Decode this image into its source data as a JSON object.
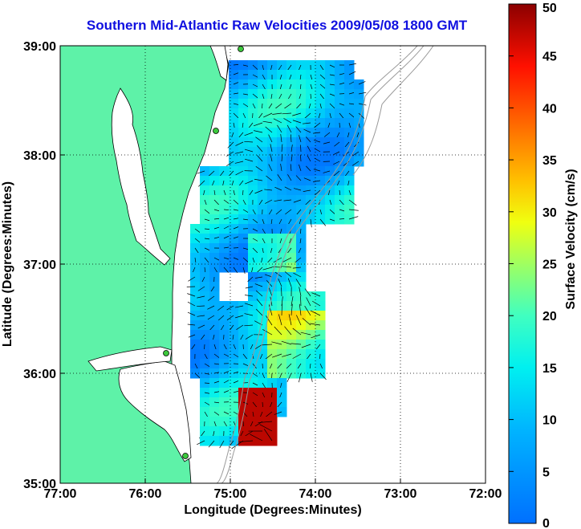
{
  "title": "Southern Mid-Atlantic Raw Velocities 2009/05/08 1800 GMT",
  "xlabel": "Longitude (Degrees:Minutes)",
  "ylabel": "Latitude (Degrees:Minutes)",
  "x_ticks": [
    "77:00",
    "76:00",
    "75:00",
    "74:00",
    "73:00",
    "72:00"
  ],
  "y_ticks": [
    "39:00",
    "38:00",
    "37:00",
    "36:00",
    "35:00"
  ],
  "colorbar": {
    "label": "Surface Velocity (cm/s)",
    "ticks": [
      "0",
      "5",
      "10",
      "15",
      "20",
      "25",
      "30",
      "35",
      "40",
      "45",
      "50"
    ],
    "min": 0,
    "max": 50
  },
  "colors": {
    "land": "#5ef2a8",
    "title": "#1010e0",
    "coast": "#000000",
    "bathy": "#9a9a9a"
  }
}
